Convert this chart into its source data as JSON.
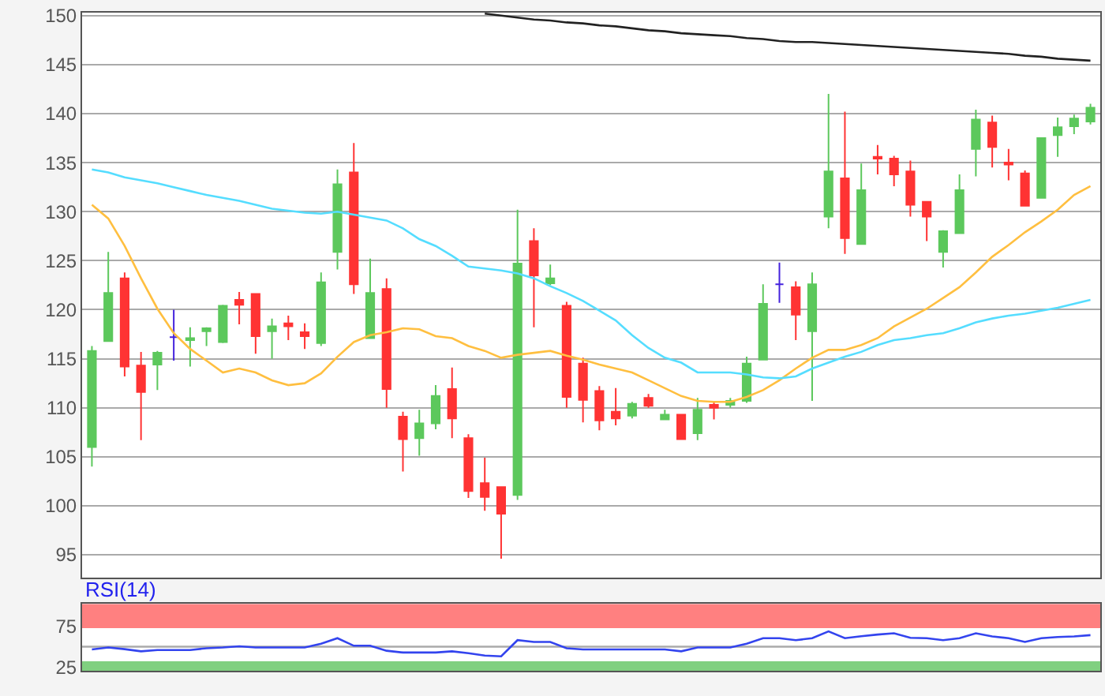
{
  "chart_data": [
    {
      "type": "candlestick",
      "categories": [
        null,
        null,
        null,
        null,
        null,
        null,
        null,
        null,
        null,
        null,
        null,
        null,
        null,
        null,
        null,
        null,
        null,
        null,
        null,
        null,
        null,
        null,
        null,
        null,
        null,
        null,
        null,
        null,
        null,
        null,
        null,
        null,
        null,
        null,
        null,
        null,
        null,
        null,
        null,
        null,
        null,
        null,
        null,
        null,
        null,
        null,
        null,
        null,
        null,
        null,
        null,
        null,
        null,
        null,
        null,
        null,
        null,
        null,
        null,
        null,
        null,
        null
      ],
      "ohlc": [
        [
          106,
          116.3,
          104,
          115.8
        ],
        [
          116.8,
          125.9,
          116.8,
          121.7
        ],
        [
          123.2,
          123.8,
          113.2,
          114.2
        ],
        [
          114.3,
          115.7,
          106.7,
          111.6
        ],
        [
          114.4,
          115.8,
          111.8,
          115.6
        ],
        [
          117.2,
          120,
          114.8,
          117.2
        ],
        [
          116.9,
          118.2,
          114.2,
          117.1
        ],
        [
          117.8,
          118.2,
          116.3,
          118.1
        ],
        [
          116.7,
          120.5,
          116.6,
          120.4
        ],
        [
          121,
          121.8,
          118.5,
          120.5
        ],
        [
          121.6,
          121.6,
          115.5,
          117.3
        ],
        [
          117.8,
          119.1,
          115,
          118.3
        ],
        [
          118.6,
          119.4,
          116.9,
          118.3
        ],
        [
          117.7,
          118.6,
          116,
          117.3
        ],
        [
          116.6,
          123.8,
          116.3,
          122.8
        ],
        [
          125.9,
          134.3,
          124.1,
          132.8
        ],
        [
          134,
          137,
          121.6,
          122.6
        ],
        [
          117.1,
          125.2,
          117.1,
          121.7
        ],
        [
          122.1,
          123.2,
          110,
          111.9
        ],
        [
          109.1,
          109.6,
          103.5,
          106.8
        ],
        [
          106.9,
          109.8,
          105.1,
          108.4
        ],
        [
          108.4,
          112.3,
          107.8,
          111.2
        ],
        [
          111.9,
          114.1,
          106.9,
          108.9
        ],
        [
          106.9,
          107.3,
          100.8,
          101.5
        ],
        [
          102.3,
          104.9,
          99.5,
          100.9
        ],
        [
          101.9,
          101.9,
          94.6,
          99.2
        ],
        [
          101.1,
          130.2,
          100.6,
          124.7
        ],
        [
          127,
          128.3,
          118.2,
          123.5
        ],
        [
          122.7,
          124.6,
          122.5,
          123.2
        ],
        [
          120.4,
          120.8,
          110,
          111.1
        ],
        [
          114.5,
          115.1,
          108.5,
          110.8
        ],
        [
          111.7,
          112.2,
          107.7,
          108.7
        ],
        [
          109.6,
          112,
          108.2,
          108.9
        ],
        [
          109.2,
          110.6,
          108.9,
          110.4
        ],
        [
          111,
          111.4,
          110,
          110.2
        ],
        [
          108.8,
          109.8,
          108.8,
          109.3
        ],
        [
          109.3,
          109.3,
          106.8,
          106.8
        ],
        [
          107.4,
          111,
          106.7,
          109.8
        ],
        [
          110.3,
          110.7,
          108.8,
          110
        ],
        [
          110.3,
          111,
          110,
          110.7
        ],
        [
          110.7,
          115.2,
          110.5,
          114.5
        ],
        [
          114.9,
          122.6,
          114.9,
          120.6
        ],
        [
          122.6,
          124.8,
          120.7,
          122.6
        ],
        [
          122.3,
          122.9,
          116.9,
          119.5
        ],
        [
          117.8,
          123.8,
          110.7,
          122.6
        ],
        [
          129.5,
          142,
          128.3,
          134.1
        ],
        [
          133.4,
          140.2,
          125.7,
          127.3
        ],
        [
          126.7,
          134.9,
          126.7,
          132.2
        ],
        [
          135.6,
          136.8,
          133.8,
          135.4
        ],
        [
          135.4,
          135.7,
          132.6,
          133.8
        ],
        [
          134.1,
          135.2,
          129.5,
          130.7
        ],
        [
          131,
          131,
          127,
          129.5
        ],
        [
          125.9,
          128.1,
          124.3,
          128
        ],
        [
          127.8,
          133.8,
          127.8,
          132.2
        ],
        [
          136.4,
          140.4,
          133.6,
          139.4
        ],
        [
          139.1,
          139.8,
          134.5,
          136.6
        ],
        [
          135,
          136.4,
          133.2,
          134.8
        ],
        [
          133.9,
          134.2,
          130.6,
          130.6
        ],
        [
          131.4,
          137.5,
          131.4,
          137.5
        ],
        [
          137.8,
          139.6,
          135.6,
          138.6
        ],
        [
          138.7,
          139.9,
          137.9,
          139.5
        ],
        [
          139.2,
          141,
          138.9,
          140.6
        ]
      ],
      "colors": [
        "#5cc85c",
        "#5cc85c",
        "#ff3333",
        "#ff3333",
        "#5cc85c",
        "#4422dd",
        "#5cc85c",
        "#5cc85c",
        "#5cc85c",
        "#ff3333",
        "#ff3333",
        "#5cc85c",
        "#ff3333",
        "#ff3333",
        "#5cc85c",
        "#5cc85c",
        "#ff3333",
        "#5cc85c",
        "#ff3333",
        "#ff3333",
        "#5cc85c",
        "#5cc85c",
        "#ff3333",
        "#ff3333",
        "#ff3333",
        "#ff3333",
        "#5cc85c",
        "#ff3333",
        "#5cc85c",
        "#ff3333",
        "#ff3333",
        "#ff3333",
        "#ff3333",
        "#5cc85c",
        "#ff3333",
        "#5cc85c",
        "#ff3333",
        "#5cc85c",
        "#ff3333",
        "#5cc85c",
        "#5cc85c",
        "#5cc85c",
        "#4422dd",
        "#ff3333",
        "#5cc85c",
        "#5cc85c",
        "#ff3333",
        "#5cc85c",
        "#ff3333",
        "#ff3333",
        "#ff3333",
        "#ff3333",
        "#5cc85c",
        "#5cc85c",
        "#5cc85c",
        "#ff3333",
        "#ff3333",
        "#ff3333",
        "#5cc85c",
        "#5cc85c",
        "#5cc85c",
        "#5cc85c"
      ],
      "series": [
        {
          "type": "line",
          "color": "#ffbf40",
          "values": [
            130.7,
            129.3,
            126.5,
            123.2,
            120.1,
            117.6,
            116,
            114.8,
            113.6,
            114,
            113.6,
            112.8,
            112.3,
            112.5,
            113.5,
            115.2,
            116.7,
            117.4,
            117.7,
            118.1,
            118,
            117.3,
            117.1,
            116.3,
            115.8,
            115.1,
            115.4,
            115.6,
            115.8,
            115.3,
            114.9,
            114.4,
            114,
            113.6,
            112.8,
            112,
            111.2,
            110.7,
            110.6,
            110.6,
            111.1,
            111.8,
            112.8,
            114,
            115.1,
            115.9,
            115.9,
            116.4,
            117.1,
            118.3,
            119.2,
            120.1,
            121.2,
            122.3,
            123.8,
            125.4,
            126.6,
            127.9,
            129,
            130.2,
            131.7,
            132.6
          ]
        },
        {
          "type": "line",
          "color": "#55ddff",
          "values": [
            134.3,
            134,
            133.5,
            133.2,
            132.9,
            132.5,
            132.1,
            131.7,
            131.4,
            131.1,
            130.7,
            130.3,
            130.1,
            129.9,
            129.8,
            130,
            129.7,
            129.4,
            129.1,
            128.3,
            127.2,
            126.5,
            125.5,
            124.4,
            124.2,
            124,
            123.7,
            123.2,
            122.4,
            121.7,
            120.9,
            119.9,
            118.9,
            117.4,
            116.1,
            115.1,
            114.6,
            113.6,
            113.6,
            113.6,
            113.4,
            113.1,
            113,
            113.2,
            114,
            114.6,
            115.2,
            115.7,
            116.4,
            116.9,
            117.1,
            117.4,
            117.6,
            118.1,
            118.7,
            119.1,
            119.4,
            119.6,
            119.9,
            120.2,
            120.6,
            121
          ]
        },
        {
          "type": "line",
          "color": "#222222",
          "values": [
            null,
            null,
            null,
            null,
            null,
            null,
            null,
            null,
            null,
            null,
            null,
            null,
            null,
            null,
            null,
            null,
            null,
            null,
            null,
            null,
            null,
            null,
            null,
            null,
            150.2,
            150.0,
            149.8,
            149.6,
            149.5,
            149.3,
            149.2,
            149.0,
            148.9,
            148.7,
            148.5,
            148.4,
            148.2,
            148.1,
            148.0,
            147.9,
            147.7,
            147.6,
            147.4,
            147.3,
            147.3,
            147.2,
            147.1,
            147.0,
            146.9,
            146.8,
            146.7,
            146.6,
            146.5,
            146.4,
            146.3,
            146.2,
            146.1,
            145.9,
            145.8,
            145.6,
            145.5,
            145.4
          ]
        }
      ],
      "ylim": [
        92.7,
        150.3
      ],
      "yticks": [
        95,
        100,
        105,
        110,
        115,
        120,
        125,
        130,
        135,
        140,
        145,
        150
      ],
      "grid": "y",
      "tick_labels": "y"
    },
    {
      "type": "line",
      "title": "RSI(14)",
      "categories": [
        null,
        null,
        null,
        null,
        null,
        null,
        null,
        null,
        null,
        null,
        null,
        null,
        null,
        null,
        null,
        null,
        null,
        null,
        null,
        null,
        null,
        null,
        null,
        null,
        null,
        null,
        null,
        null,
        null,
        null,
        null,
        null,
        null,
        null,
        null,
        null,
        null,
        null,
        null,
        null,
        null,
        null,
        null,
        null,
        null,
        null,
        null,
        null,
        null,
        null,
        null,
        null,
        null,
        null,
        null,
        null,
        null,
        null,
        null,
        null,
        null,
        null
      ],
      "series": [
        {
          "color": "#3344ee",
          "values": [
            46.6,
            49,
            47,
            44.3,
            45.9,
            45.9,
            45.9,
            48.1,
            49,
            50.5,
            49,
            49,
            49,
            49,
            53.6,
            60.5,
            51.2,
            51.2,
            45,
            42.8,
            42.8,
            42.8,
            44.3,
            42,
            39,
            38.1,
            58.1,
            55.9,
            55.9,
            48.1,
            46.6,
            46.6,
            46.6,
            46.6,
            46.6,
            46.6,
            44.3,
            49,
            49,
            49,
            53.6,
            60.5,
            60.5,
            58.1,
            60.5,
            69,
            60.5,
            63,
            65,
            66.6,
            61,
            60.5,
            58.1,
            60.5,
            66.6,
            62.8,
            60.5,
            55.9,
            60.5,
            62,
            62.8,
            64.3
          ]
        }
      ],
      "bands": [
        {
          "axis": "y",
          "from": 73,
          "to": 103,
          "color": "#ff8080"
        },
        {
          "axis": "y",
          "from": 20,
          "to": 32,
          "color": "#80d080"
        }
      ],
      "ref_lines": [
        {
          "axis": "y",
          "value": 50,
          "color": "#aaaaaa"
        }
      ],
      "ylim": [
        20,
        103
      ],
      "yticks": [
        25,
        75
      ],
      "grid": false,
      "tick_labels": "y"
    }
  ]
}
